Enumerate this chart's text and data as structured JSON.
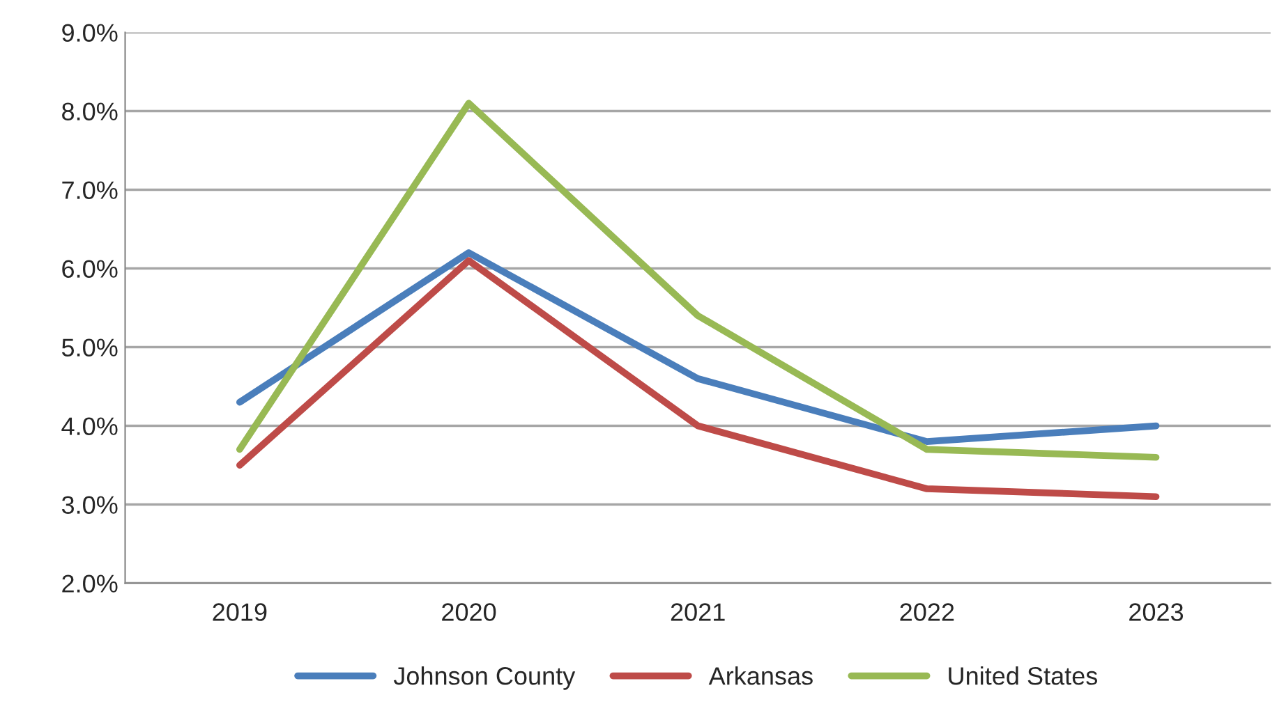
{
  "chart_data": {
    "type": "line",
    "categories": [
      "2019",
      "2020",
      "2021",
      "2022",
      "2023"
    ],
    "series": [
      {
        "name": "Johnson County",
        "color": "#4a7ebb",
        "values": [
          4.3,
          6.2,
          4.6,
          3.8,
          4.0
        ]
      },
      {
        "name": "Arkansas",
        "color": "#be4b48",
        "values": [
          3.5,
          6.1,
          4.0,
          3.2,
          3.1
        ]
      },
      {
        "name": "United States",
        "color": "#98b954",
        "values": [
          3.7,
          8.1,
          5.4,
          3.7,
          3.6
        ]
      }
    ],
    "ylim": [
      2,
      9
    ],
    "yticks": [
      {
        "value": 2,
        "label": "2.0%"
      },
      {
        "value": 3,
        "label": "3.0%"
      },
      {
        "value": 4,
        "label": "4.0%"
      },
      {
        "value": 5,
        "label": "5.0%"
      },
      {
        "value": 6,
        "label": "6.0%"
      },
      {
        "value": 7,
        "label": "7.0%"
      },
      {
        "value": 8,
        "label": "8.0%"
      },
      {
        "value": 9,
        "label": "9.0%"
      }
    ],
    "grid": "y",
    "legend": "bottom",
    "marker": "none",
    "line_style": "solid"
  }
}
